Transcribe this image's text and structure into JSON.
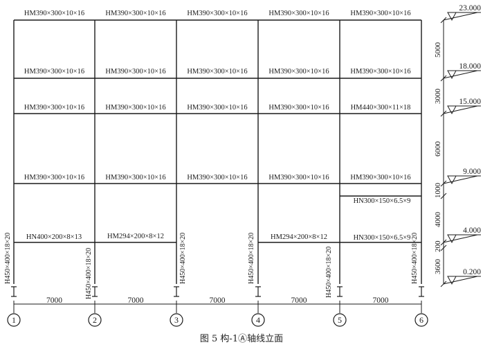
{
  "figure": {
    "caption": "图 5   构-1Ⓐ轴线立面"
  },
  "axes": [
    "1",
    "2",
    "3",
    "4",
    "5",
    "6"
  ],
  "bay_spans": [
    "7000",
    "7000",
    "7000",
    "7000",
    "7000"
  ],
  "levels": [
    {
      "elev": "23.000"
    },
    {
      "elev": "18.000"
    },
    {
      "elev": "15.000"
    },
    {
      "elev": "9.000"
    },
    {
      "elev": "4.000"
    },
    {
      "elev": "0.200"
    }
  ],
  "storey_dims": [
    "5000",
    "3000",
    "6000",
    "1000",
    "4000",
    "200",
    "3600"
  ],
  "beam_rows": [
    [
      "HM390×300×10×16",
      "HM390×300×10×16",
      "HM390×300×10×16",
      "HM390×300×10×16",
      "HM390×300×10×16"
    ],
    [
      "HM390×300×10×16",
      "HM390×300×10×16",
      "HM390×300×10×16",
      "HM390×300×10×16",
      "HM390×300×10×16"
    ],
    [
      "HM390×300×10×16",
      "HM390×300×10×16",
      "HM390×300×10×16",
      "HM390×300×10×16",
      "HM440×300×11×18"
    ],
    [
      "HM390×300×10×16",
      "HM390×300×10×16",
      "HM390×300×10×16",
      "HM390×300×10×16",
      "HM390×300×10×16"
    ]
  ],
  "partial_beams": [
    {
      "bay": 0,
      "label": "HN400×200×8×13"
    },
    {
      "bay": 1,
      "label": "HM294×200×8×12"
    },
    {
      "bay": 3,
      "label": "HM294×200×8×12"
    },
    {
      "bay": 4,
      "label": "HN300×150×6.5×9"
    },
    {
      "bay": 4,
      "label": "HN300×150×6.5×9"
    }
  ],
  "column_label": "H450×400×18×20"
}
